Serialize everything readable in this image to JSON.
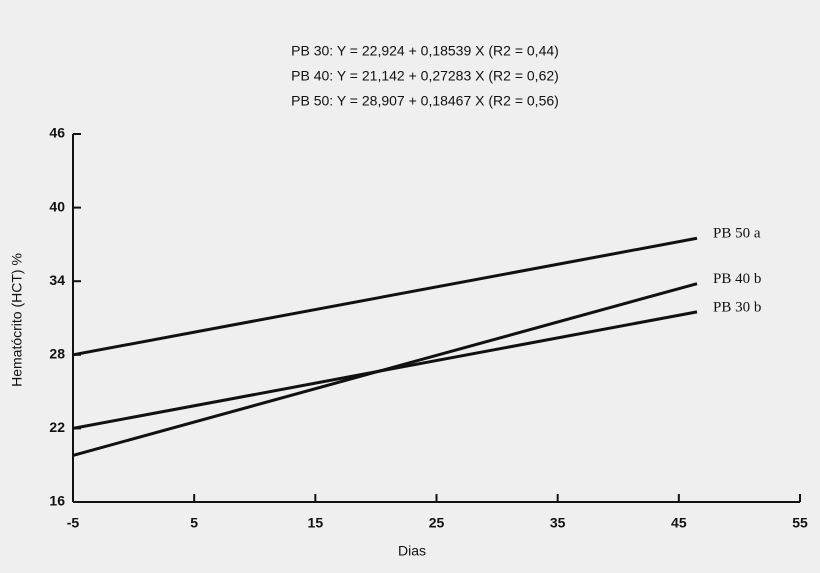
{
  "chart_data": {
    "type": "line",
    "subtitle": [
      "PB 30: Y = 22,924 + 0,18539 X (R2 = 0,44)",
      "PB 40: Y = 21,142 + 0,27283 X (R2 = 0,62)",
      "PB 50: Y = 28,907 + 0,18467 X (R2 = 0,56)"
    ],
    "x_label": "Dias",
    "y_label": "Hematócrito (HCT) %",
    "x": [
      -5,
      46.5
    ],
    "series": [
      {
        "name": "PB 50 a",
        "color": "#111111",
        "values": [
          28.0,
          37.5
        ]
      },
      {
        "name": "PB 40 b",
        "color": "#111111",
        "values": [
          19.8,
          33.8
        ]
      },
      {
        "name": "PB 30 b",
        "color": "#111111",
        "values": [
          22.0,
          31.5
        ]
      }
    ],
    "xlim": [
      -5,
      55
    ],
    "xticks": [
      -5,
      5,
      15,
      25,
      35,
      45,
      55
    ],
    "ylim": [
      16,
      46
    ],
    "yticks": [
      16,
      22,
      28,
      34,
      40,
      46
    ]
  }
}
